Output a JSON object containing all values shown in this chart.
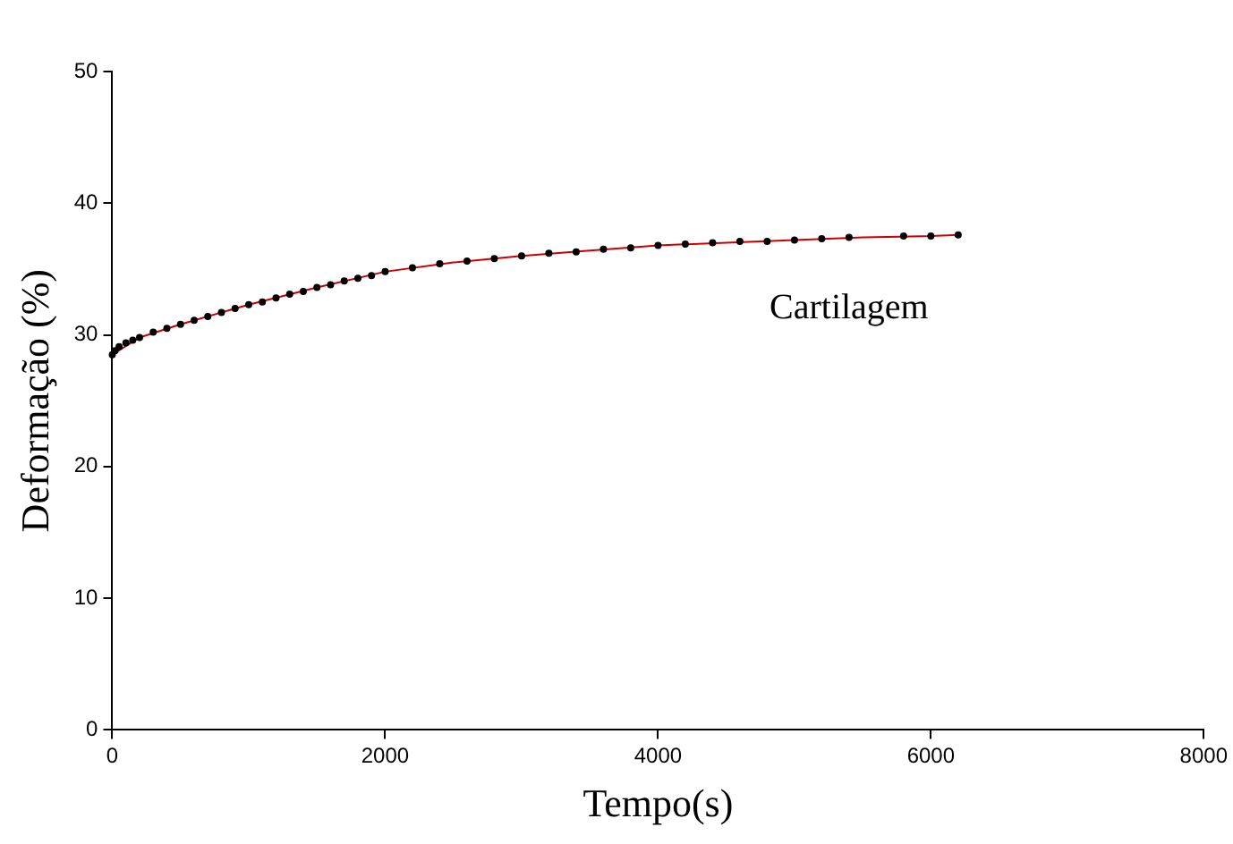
{
  "chart_data": {
    "type": "scatter",
    "xlabel": "Tempo(s)",
    "ylabel": "Deformação (%)",
    "xlim": [
      0,
      8000
    ],
    "xticks": [
      0,
      2000,
      4000,
      6000,
      8000
    ],
    "ylim": [
      0,
      50
    ],
    "yticks": [
      0,
      10,
      20,
      30,
      40,
      50
    ],
    "grid": false,
    "legend": false,
    "annotations": [
      "Cartilagem"
    ],
    "series": [
      {
        "type": "scatter",
        "color": "#000000",
        "marker": "circle",
        "x": [
          0,
          20,
          50,
          100,
          150,
          200,
          300,
          400,
          500,
          600,
          700,
          800,
          900,
          1000,
          1100,
          1200,
          1300,
          1400,
          1500,
          1600,
          1700,
          1800,
          1900,
          2000,
          2200,
          2400,
          2600,
          2800,
          3000,
          3200,
          3400,
          3600,
          3800,
          4000,
          4200,
          4400,
          4600,
          4800,
          5000,
          5200,
          5400,
          5800,
          6000,
          6200
        ],
        "values": [
          28.5,
          28.8,
          29.1,
          29.4,
          29.6,
          29.8,
          30.2,
          30.5,
          30.8,
          31.1,
          31.4,
          31.7,
          32.0,
          32.3,
          32.5,
          32.8,
          33.1,
          33.3,
          33.6,
          33.8,
          34.1,
          34.3,
          34.5,
          34.8,
          35.1,
          35.4,
          35.6,
          35.8,
          36.0,
          36.2,
          36.3,
          36.5,
          36.6,
          36.8,
          36.9,
          37.0,
          37.1,
          37.1,
          37.2,
          37.3,
          37.4,
          37.5,
          37.5,
          37.6
        ]
      },
      {
        "type": "line",
        "color": "#cc0000",
        "marker": "none",
        "line_style": "solid",
        "x": [
          0,
          200,
          500,
          1000,
          1500,
          2000,
          2500,
          3000,
          3500,
          4000,
          4500,
          5000,
          5500,
          6000,
          6200
        ],
        "values": [
          28.5,
          29.8,
          30.8,
          32.3,
          33.6,
          34.8,
          35.5,
          36.0,
          36.4,
          36.8,
          37.0,
          37.2,
          37.4,
          37.5,
          37.6
        ]
      }
    ]
  }
}
